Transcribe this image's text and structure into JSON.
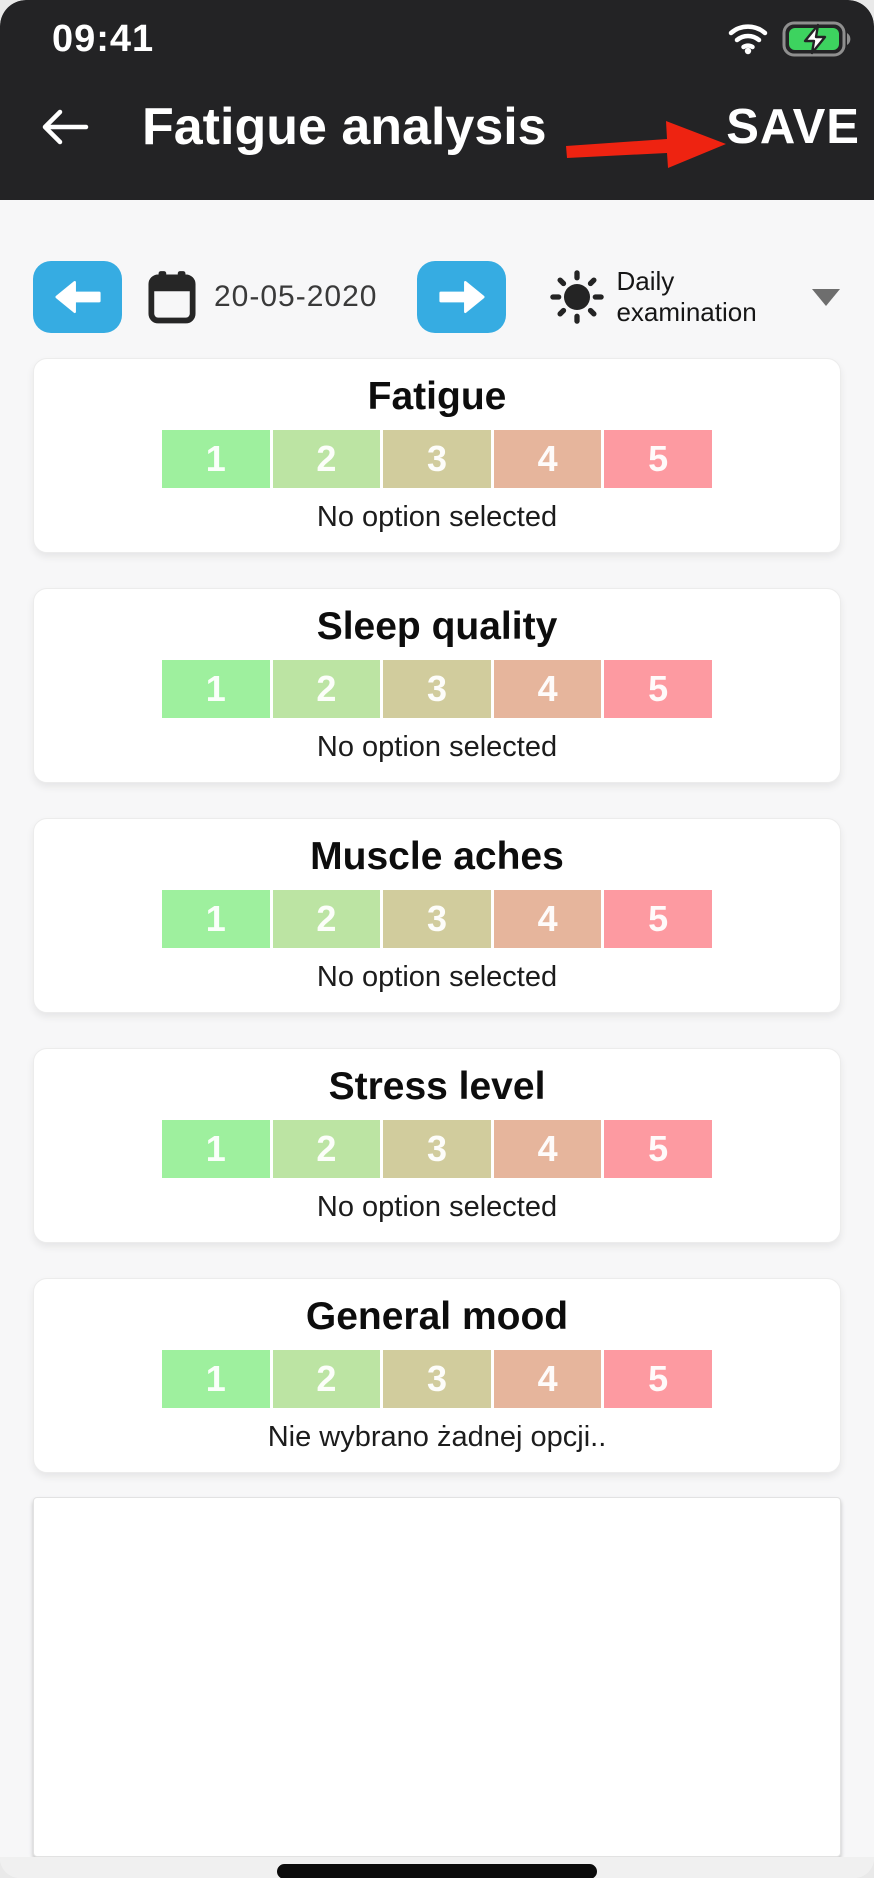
{
  "status_bar": {
    "time": "09:41",
    "wifi_icon": "wifi",
    "battery_icon": "battery-charging"
  },
  "header": {
    "back_icon": "arrow-left",
    "title": "Fatigue analysis",
    "annotation_icon": "red-arrow-pointing-to-save",
    "save_label": "SAVE"
  },
  "toolbar": {
    "prev_icon": "arrow-left",
    "calendar_icon": "calendar",
    "date": "20-05-2020",
    "next_icon": "arrow-right",
    "exam_icon": "sun",
    "exam_type": "Daily examination",
    "dropdown_icon": "chevron-down"
  },
  "scale": {
    "labels": [
      "1",
      "2",
      "3",
      "4",
      "5"
    ],
    "colors": [
      "#9EF09E",
      "#BCE4A3",
      "#D1CC9D",
      "#E6B59C",
      "#FD9AA1"
    ]
  },
  "cards": [
    {
      "title": "Fatigue",
      "status": "No option selected"
    },
    {
      "title": "Sleep quality",
      "status": "No option selected"
    },
    {
      "title": "Muscle aches",
      "status": "No option selected"
    },
    {
      "title": "Stress level",
      "status": "No option selected"
    },
    {
      "title": "General mood",
      "status": "Nie wybrano żadnej opcji.."
    }
  ],
  "colors": {
    "header_bg": "#232325",
    "accent_blue": "#36ACE2",
    "annotation_red": "#EE2311",
    "battery_green": "#3DD35F",
    "page_bg": "#F7F7F8",
    "card_bg": "#FFFFFF"
  }
}
